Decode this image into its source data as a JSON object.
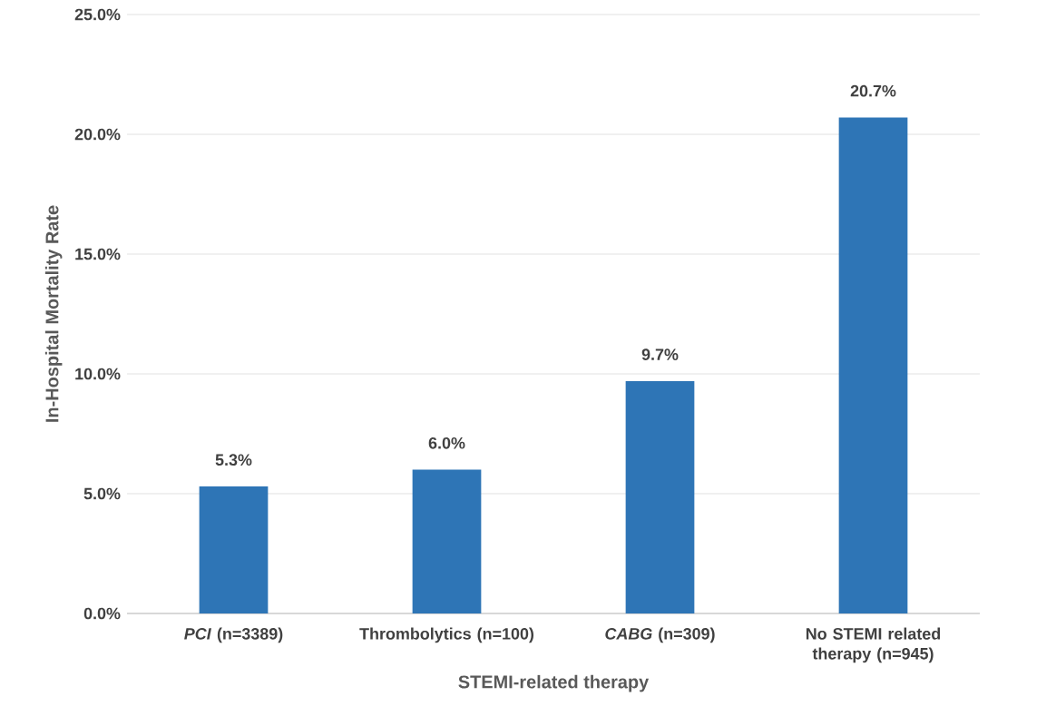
{
  "chart_data": {
    "type": "bar",
    "xlabel": "STEMI-related therapy",
    "ylabel": "In-Hospital Mortality Rate",
    "categories": [
      "*PCI* (n=3389)",
      "Thrombolytics (n=100)",
      "*CABG* (n=309)",
      "No STEMI related therapy (n=945)"
    ],
    "values": [
      5.3,
      6.0,
      9.7,
      20.7
    ],
    "value_labels": [
      "5.3%",
      "6.0%",
      "9.7%",
      "20.7%"
    ],
    "color": "#2e75b6",
    "ylim": [
      0,
      25
    ],
    "yticks": [
      {
        "value": 0,
        "label": "0.0%"
      },
      {
        "value": 5,
        "label": "5.0%"
      },
      {
        "value": 10,
        "label": "10.0%"
      },
      {
        "value": 15,
        "label": "15.0%"
      },
      {
        "value": 20,
        "label": "20.0%"
      },
      {
        "value": 25,
        "label": "25.0%"
      }
    ],
    "grid": "y"
  }
}
